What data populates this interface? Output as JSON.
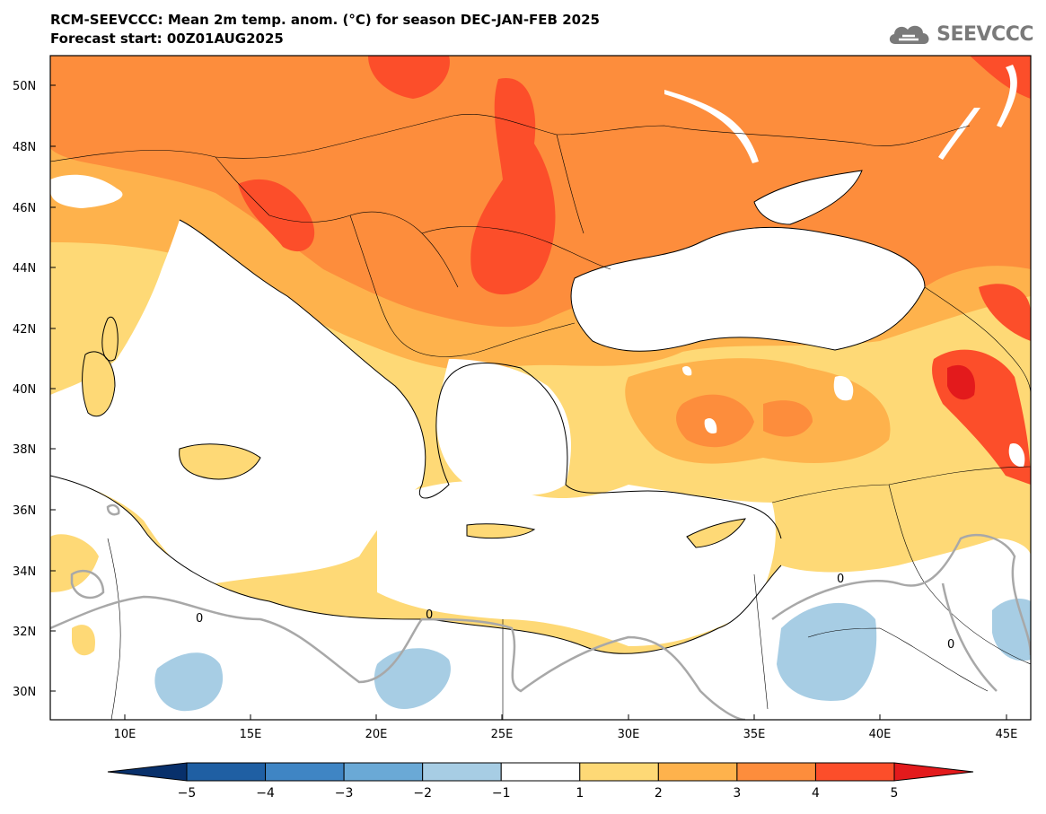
{
  "title": {
    "line1": "RCM-SEEVCCC: Mean 2m temp. anom. (°C) for season DEC-JAN-FEB 2025",
    "line2": "Forecast start: 00Z01AUG2025"
  },
  "logo": {
    "text": "SEEVCCC",
    "icon": "cloud-icon"
  },
  "map": {
    "lat_labels": [
      "50N",
      "48N",
      "46N",
      "44N",
      "42N",
      "40N",
      "38N",
      "36N",
      "34N",
      "32N",
      "30N"
    ],
    "lon_labels": [
      "10E",
      "15E",
      "20E",
      "25E",
      "30E",
      "35E",
      "40E",
      "45E"
    ],
    "contour_zero_label": "0"
  },
  "colorbar": {
    "ticks": [
      "-5",
      "-4",
      "-3",
      "-2",
      "-1",
      "1",
      "2",
      "3",
      "4",
      "5"
    ],
    "colors": [
      "#08306b",
      "#1f5fa3",
      "#3f85c4",
      "#6aa9d6",
      "#a7cde4",
      "#ffffff",
      "#fed976",
      "#feb24c",
      "#fd8d3c",
      "#fc4e2a",
      "#e31a1c"
    ]
  }
}
